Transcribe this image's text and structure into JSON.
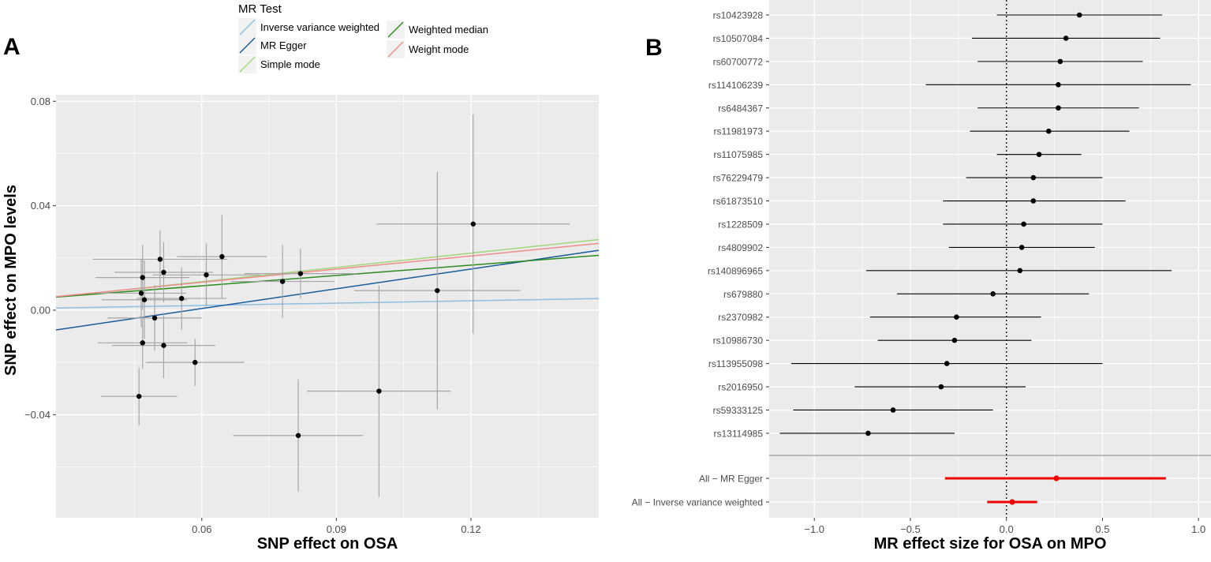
{
  "figure": {
    "colors": {
      "panel_bg": "#ebebeb",
      "grid": "#ffffff",
      "point": "#000000",
      "errorbar_a": "#a6a6a6",
      "summary": "#ee0000",
      "separator": "#999999",
      "axis_text": "#4d4d4d",
      "title_text": "#000000"
    }
  },
  "chart_data": [
    {
      "panel": "A",
      "type": "scatter",
      "xlabel": "SNP effect on OSA",
      "ylabel": "SNP effect on MPO levels",
      "xlim": [
        0.0275,
        0.1485
      ],
      "ylim": [
        -0.0795,
        0.0825
      ],
      "xticks": [
        0.06,
        0.09,
        0.12
      ],
      "xtick_labels": [
        "0.06",
        "0.09",
        "0.12"
      ],
      "yticks": [
        -0.04,
        0.0,
        0.04,
        0.08
      ],
      "ytick_labels": [
        "−0.04",
        "0.00",
        "0.04",
        "0.08"
      ],
      "grid": true,
      "legend": {
        "title": "MR Test",
        "position": "top",
        "entries": [
          {
            "label": "Inverse variance weighted",
            "color": "#8dbfe2"
          },
          {
            "label": "MR Egger",
            "color": "#1a5c9a"
          },
          {
            "label": "Simple mode",
            "color": "#a3d67e"
          },
          {
            "label": "Weighted median",
            "color": "#2b8c1e"
          },
          {
            "label": "Weight mode",
            "color": "#ef8c8c"
          }
        ]
      },
      "lines": [
        {
          "name": "Inverse variance weighted",
          "color": "#8dbfe2",
          "slope": 0.03,
          "intercept": 0.0
        },
        {
          "name": "MR Egger",
          "color": "#1a5c9a",
          "slope": 0.252,
          "intercept": -0.0145
        },
        {
          "name": "Simple mode",
          "color": "#a3d67e",
          "slope": 0.182,
          "intercept": 0.0
        },
        {
          "name": "Weighted median",
          "color": "#2b8c1e",
          "slope": 0.132,
          "intercept": 0.0014
        },
        {
          "name": "Weight mode",
          "color": "#ef8c8c",
          "slope": 0.168,
          "intercept": 0.0006
        }
      ],
      "points": [
        {
          "x": 0.046,
          "y": -0.033,
          "xerr": 0.0085,
          "yerr": 0.011
        },
        {
          "x": 0.0465,
          "y": 0.0065,
          "xerr": 0.01,
          "yerr": 0.013
        },
        {
          "x": 0.0468,
          "y": 0.0125,
          "xerr": 0.0105,
          "yerr": 0.0125
        },
        {
          "x": 0.0468,
          "y": -0.0125,
          "xerr": 0.01,
          "yerr": 0.01
        },
        {
          "x": 0.0472,
          "y": 0.004,
          "xerr": 0.0095,
          "yerr": 0.015
        },
        {
          "x": 0.0495,
          "y": -0.003,
          "xerr": 0.0105,
          "yerr": 0.0125
        },
        {
          "x": 0.0507,
          "y": 0.0195,
          "xerr": 0.015,
          "yerr": 0.011
        },
        {
          "x": 0.0515,
          "y": 0.0145,
          "xerr": 0.011,
          "yerr": 0.0115
        },
        {
          "x": 0.0515,
          "y": -0.0135,
          "xerr": 0.0115,
          "yerr": 0.0125
        },
        {
          "x": 0.0555,
          "y": 0.0045,
          "xerr": 0.01,
          "yerr": 0.012
        },
        {
          "x": 0.0585,
          "y": -0.02,
          "xerr": 0.011,
          "yerr": 0.009
        },
        {
          "x": 0.061,
          "y": 0.0135,
          "xerr": 0.012,
          "yerr": 0.012
        },
        {
          "x": 0.0645,
          "y": 0.0205,
          "xerr": 0.01,
          "yerr": 0.016
        },
        {
          "x": 0.078,
          "y": 0.011,
          "xerr": 0.0115,
          "yerr": 0.014
        },
        {
          "x": 0.0815,
          "y": -0.048,
          "xerr": 0.0145,
          "yerr": 0.0215
        },
        {
          "x": 0.082,
          "y": 0.014,
          "xerr": 0.0125,
          "yerr": 0.0095
        },
        {
          "x": 0.0995,
          "y": -0.031,
          "xerr": 0.016,
          "yerr": 0.0405
        },
        {
          "x": 0.1125,
          "y": 0.0075,
          "xerr": 0.0185,
          "yerr": 0.0455
        },
        {
          "x": 0.1205,
          "y": 0.033,
          "xerr": 0.0215,
          "yerr": 0.042
        }
      ]
    },
    {
      "panel": "B",
      "type": "forest",
      "xlabel": "MR effect size for OSA on MPO",
      "xlim": [
        -1.235,
        1.065
      ],
      "xticks": [
        -1.0,
        -0.5,
        0.0,
        0.5,
        1.0
      ],
      "xtick_labels": [
        "−1.0",
        "−0.5",
        "0.0",
        "0.5",
        "1.0"
      ],
      "reference_line": 0,
      "grid": true,
      "snps": [
        {
          "label": "rs10423928",
          "est": 0.38,
          "lo": -0.05,
          "hi": 0.81
        },
        {
          "label": "rs10507084",
          "est": 0.31,
          "lo": -0.18,
          "hi": 0.8
        },
        {
          "label": "rs60700772",
          "est": 0.28,
          "lo": -0.15,
          "hi": 0.71
        },
        {
          "label": "rs114106239",
          "est": 0.27,
          "lo": -0.42,
          "hi": 0.96
        },
        {
          "label": "rs6484367",
          "est": 0.27,
          "lo": -0.15,
          "hi": 0.69
        },
        {
          "label": "rs11981973",
          "est": 0.22,
          "lo": -0.19,
          "hi": 0.64
        },
        {
          "label": "rs11075985",
          "est": 0.17,
          "lo": -0.05,
          "hi": 0.39
        },
        {
          "label": "rs76229479",
          "est": 0.14,
          "lo": -0.21,
          "hi": 0.5
        },
        {
          "label": "rs61873510",
          "est": 0.14,
          "lo": -0.33,
          "hi": 0.62
        },
        {
          "label": "rs1228509",
          "est": 0.09,
          "lo": -0.33,
          "hi": 0.5
        },
        {
          "label": "rs4809902",
          "est": 0.08,
          "lo": -0.3,
          "hi": 0.46
        },
        {
          "label": "rs140896965",
          "est": 0.07,
          "lo": -0.73,
          "hi": 0.86
        },
        {
          "label": "rs679880",
          "est": -0.07,
          "lo": -0.57,
          "hi": 0.43
        },
        {
          "label": "rs2370982",
          "est": -0.26,
          "lo": -0.71,
          "hi": 0.18
        },
        {
          "label": "rs10986730",
          "est": -0.27,
          "lo": -0.67,
          "hi": 0.13
        },
        {
          "label": "rs113955098",
          "est": -0.31,
          "lo": -1.12,
          "hi": 0.5
        },
        {
          "label": "rs2016950",
          "est": -0.34,
          "lo": -0.79,
          "hi": 0.1
        },
        {
          "label": "rs59333125",
          "est": -0.59,
          "lo": -1.11,
          "hi": -0.07
        },
        {
          "label": "rs13114985",
          "est": -0.72,
          "lo": -1.18,
          "hi": -0.27
        }
      ],
      "summary": [
        {
          "label": "All − MR Egger",
          "est": 0.26,
          "lo": -0.32,
          "hi": 0.83
        },
        {
          "label": "All − Inverse variance weighted",
          "est": 0.03,
          "lo": -0.1,
          "hi": 0.16
        }
      ]
    }
  ],
  "panel_labels": {
    "a": "A",
    "b": "B"
  }
}
